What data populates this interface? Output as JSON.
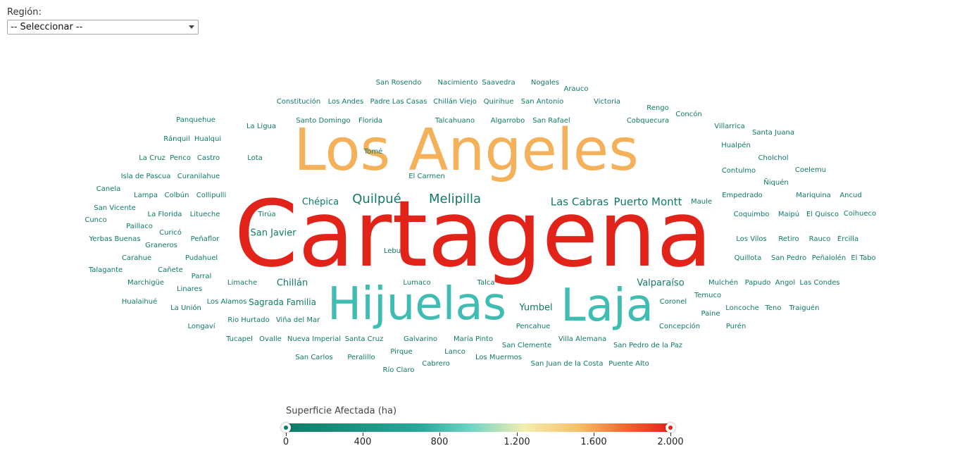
{
  "filter": {
    "label": "Región:",
    "selected": "-- Seleccionar --"
  },
  "colors": {
    "low": "#0f7a67",
    "mid": "#3fbdb2",
    "high_mid": "#f5b05a",
    "high": "#e2231a"
  },
  "legend": {
    "title": "Superficie Afectada (ha)",
    "ticks": [
      "0",
      "400",
      "800",
      "1.200",
      "1.600",
      "2.000"
    ],
    "range_min": 0,
    "range_max": 2000
  },
  "words": [
    {
      "text": "Cartagena",
      "color": "#e2231a"
    },
    {
      "text": "Los Angeles",
      "color": "#f5b05a"
    },
    {
      "text": "Hijuelas",
      "color": "#3fbdb2"
    },
    {
      "text": "Laja",
      "color": "#3fbdb2"
    },
    {
      "text": "Quilpué",
      "color": "#0f7a67"
    },
    {
      "text": "Melipilla",
      "color": "#0f7a67"
    },
    {
      "text": "Las Cabras",
      "color": "#0f7a67"
    },
    {
      "text": "Puerto Montt",
      "color": "#0f7a67"
    },
    {
      "text": "Chépica",
      "color": "#0f7a67"
    },
    {
      "text": "San Javier",
      "color": "#0f7a67"
    },
    {
      "text": "Yumbel",
      "color": "#0f7a67"
    },
    {
      "text": "Valparaíso",
      "color": "#0f7a67"
    },
    {
      "text": "Chillán",
      "color": "#0f7a67"
    },
    {
      "text": "Sagrada Familia",
      "color": "#0f7a67"
    },
    {
      "text": "San Rosendo",
      "color": "#0f7a67"
    },
    {
      "text": "Nacimiento",
      "color": "#0f7a67"
    },
    {
      "text": "Saavedra",
      "color": "#0f7a67"
    },
    {
      "text": "Nogales",
      "color": "#0f7a67"
    },
    {
      "text": "Arauco",
      "color": "#0f7a67"
    },
    {
      "text": "Constitución",
      "color": "#0f7a67"
    },
    {
      "text": "Los Andes",
      "color": "#0f7a67"
    },
    {
      "text": "Padre Las Casas",
      "color": "#0f7a67"
    },
    {
      "text": "Chillán Viejo",
      "color": "#0f7a67"
    },
    {
      "text": "Quirihue",
      "color": "#0f7a67"
    },
    {
      "text": "San Antonio",
      "color": "#0f7a67"
    },
    {
      "text": "Victoria",
      "color": "#0f7a67"
    },
    {
      "text": "Rengo",
      "color": "#0f7a67"
    },
    {
      "text": "Concón",
      "color": "#0f7a67"
    },
    {
      "text": "Panquehue",
      "color": "#0f7a67"
    },
    {
      "text": "La Ligua",
      "color": "#0f7a67"
    },
    {
      "text": "Santo Domingo",
      "color": "#0f7a67"
    },
    {
      "text": "Florida",
      "color": "#0f7a67"
    },
    {
      "text": "Talcahuano",
      "color": "#0f7a67"
    },
    {
      "text": "Algarrobo",
      "color": "#0f7a67"
    },
    {
      "text": "San Rafael",
      "color": "#0f7a67"
    },
    {
      "text": "Cobquecura",
      "color": "#0f7a67"
    },
    {
      "text": "Villarrica",
      "color": "#0f7a67"
    },
    {
      "text": "Santa Juana",
      "color": "#0f7a67"
    },
    {
      "text": "Ránquil",
      "color": "#0f7a67"
    },
    {
      "text": "Hualqui",
      "color": "#0f7a67"
    },
    {
      "text": "Hualpén",
      "color": "#0f7a67"
    },
    {
      "text": "Tomé",
      "color": "#0f7a67"
    },
    {
      "text": "La Cruz",
      "color": "#0f7a67"
    },
    {
      "text": "Penco",
      "color": "#0f7a67"
    },
    {
      "text": "Castro",
      "color": "#0f7a67"
    },
    {
      "text": "Lota",
      "color": "#0f7a67"
    },
    {
      "text": "Cholchol",
      "color": "#0f7a67"
    },
    {
      "text": "Isla de Pascua",
      "color": "#0f7a67"
    },
    {
      "text": "Curanilahue",
      "color": "#0f7a67"
    },
    {
      "text": "El Carmen",
      "color": "#0f7a67"
    },
    {
      "text": "Contulmo",
      "color": "#0f7a67"
    },
    {
      "text": "Coelemu",
      "color": "#0f7a67"
    },
    {
      "text": "Ñiquén",
      "color": "#0f7a67"
    },
    {
      "text": "Canela",
      "color": "#0f7a67"
    },
    {
      "text": "Lampa",
      "color": "#0f7a67"
    },
    {
      "text": "Colbún",
      "color": "#0f7a67"
    },
    {
      "text": "Collipulli",
      "color": "#0f7a67"
    },
    {
      "text": "Empedrado",
      "color": "#0f7a67"
    },
    {
      "text": "Mariquina",
      "color": "#0f7a67"
    },
    {
      "text": "Ancud",
      "color": "#0f7a67"
    },
    {
      "text": "Maule",
      "color": "#0f7a67"
    },
    {
      "text": "San Vicente",
      "color": "#0f7a67"
    },
    {
      "text": "La Florida",
      "color": "#0f7a67"
    },
    {
      "text": "Litueche",
      "color": "#0f7a67"
    },
    {
      "text": "Tirúa",
      "color": "#0f7a67"
    },
    {
      "text": "Coquimbo",
      "color": "#0f7a67"
    },
    {
      "text": "Maipú",
      "color": "#0f7a67"
    },
    {
      "text": "El Quisco",
      "color": "#0f7a67"
    },
    {
      "text": "Coihueco",
      "color": "#0f7a67"
    },
    {
      "text": "Cunco",
      "color": "#0f7a67"
    },
    {
      "text": "Paillaco",
      "color": "#0f7a67"
    },
    {
      "text": "Curicó",
      "color": "#0f7a67"
    },
    {
      "text": "Yerbas Buenas",
      "color": "#0f7a67"
    },
    {
      "text": "Graneros",
      "color": "#0f7a67"
    },
    {
      "text": "Peñaflor",
      "color": "#0f7a67"
    },
    {
      "text": "Los Vilos",
      "color": "#0f7a67"
    },
    {
      "text": "Retiro",
      "color": "#0f7a67"
    },
    {
      "text": "Rauco",
      "color": "#0f7a67"
    },
    {
      "text": "Ercilla",
      "color": "#0f7a67"
    },
    {
      "text": "Lebu",
      "color": "#0f7a67"
    },
    {
      "text": "Carahue",
      "color": "#0f7a67"
    },
    {
      "text": "Pudahuel",
      "color": "#0f7a67"
    },
    {
      "text": "Quillota",
      "color": "#0f7a67"
    },
    {
      "text": "San Pedro",
      "color": "#0f7a67"
    },
    {
      "text": "Peñalolén",
      "color": "#0f7a67"
    },
    {
      "text": "El Tabo",
      "color": "#0f7a67"
    },
    {
      "text": "Talagante",
      "color": "#0f7a67"
    },
    {
      "text": "Cañete",
      "color": "#0f7a67"
    },
    {
      "text": "Parral",
      "color": "#0f7a67"
    },
    {
      "text": "Marchigüe",
      "color": "#0f7a67"
    },
    {
      "text": "Linares",
      "color": "#0f7a67"
    },
    {
      "text": "Limache",
      "color": "#0f7a67"
    },
    {
      "text": "Lumaco",
      "color": "#0f7a67"
    },
    {
      "text": "Talca",
      "color": "#0f7a67"
    },
    {
      "text": "Mulchén",
      "color": "#0f7a67"
    },
    {
      "text": "Papudo",
      "color": "#0f7a67"
    },
    {
      "text": "Angol",
      "color": "#0f7a67"
    },
    {
      "text": "Las Condes",
      "color": "#0f7a67"
    },
    {
      "text": "Temuco",
      "color": "#0f7a67"
    },
    {
      "text": "Hualaihué",
      "color": "#0f7a67"
    },
    {
      "text": "La Unión",
      "color": "#0f7a67"
    },
    {
      "text": "Los Alamos",
      "color": "#0f7a67"
    },
    {
      "text": "Coronel",
      "color": "#0f7a67"
    },
    {
      "text": "Loncoche",
      "color": "#0f7a67"
    },
    {
      "text": "Teno",
      "color": "#0f7a67"
    },
    {
      "text": "Traiguén",
      "color": "#0f7a67"
    },
    {
      "text": "Paine",
      "color": "#0f7a67"
    },
    {
      "text": "Rio Hurtado",
      "color": "#0f7a67"
    },
    {
      "text": "Viña del Mar",
      "color": "#0f7a67"
    },
    {
      "text": "Longaví",
      "color": "#0f7a67"
    },
    {
      "text": "Pencahue",
      "color": "#0f7a67"
    },
    {
      "text": "Concepción",
      "color": "#0f7a67"
    },
    {
      "text": "Purén",
      "color": "#0f7a67"
    },
    {
      "text": "Tucapel",
      "color": "#0f7a67"
    },
    {
      "text": "Ovalle",
      "color": "#0f7a67"
    },
    {
      "text": "Nueva Imperial",
      "color": "#0f7a67"
    },
    {
      "text": "Santa Cruz",
      "color": "#0f7a67"
    },
    {
      "text": "Galvarino",
      "color": "#0f7a67"
    },
    {
      "text": "María Pinto",
      "color": "#0f7a67"
    },
    {
      "text": "Villa Alemana",
      "color": "#0f7a67"
    },
    {
      "text": "San Clemente",
      "color": "#0f7a67"
    },
    {
      "text": "San Pedro de la Paz",
      "color": "#0f7a67"
    },
    {
      "text": "San Carlos",
      "color": "#0f7a67"
    },
    {
      "text": "Peralillo",
      "color": "#0f7a67"
    },
    {
      "text": "Pirque",
      "color": "#0f7a67"
    },
    {
      "text": "Lanco",
      "color": "#0f7a67"
    },
    {
      "text": "Los Muermos",
      "color": "#0f7a67"
    },
    {
      "text": "Cabrero",
      "color": "#0f7a67"
    },
    {
      "text": "Río Claro",
      "color": "#0f7a67"
    },
    {
      "text": "San Juan de la Costa",
      "color": "#0f7a67"
    },
    {
      "text": "Puente Alto",
      "color": "#0f7a67"
    }
  ]
}
